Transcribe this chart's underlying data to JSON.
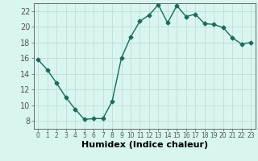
{
  "x": [
    0,
    1,
    2,
    3,
    4,
    5,
    6,
    7,
    8,
    9,
    10,
    11,
    12,
    13,
    14,
    15,
    16,
    17,
    18,
    19,
    20,
    21,
    22,
    23
  ],
  "y": [
    15.8,
    14.5,
    12.8,
    11.0,
    9.5,
    8.2,
    8.3,
    8.3,
    10.5,
    16.0,
    18.7,
    20.7,
    21.5,
    22.8,
    20.5,
    22.7,
    21.3,
    21.6,
    20.4,
    20.3,
    19.9,
    18.6,
    17.8,
    18.0
  ],
  "xlabel": "Humidex (Indice chaleur)",
  "xlim": [
    -0.5,
    23.5
  ],
  "ylim": [
    7,
    23
  ],
  "yticks": [
    8,
    10,
    12,
    14,
    16,
    18,
    20,
    22
  ],
  "xticks": [
    0,
    1,
    2,
    3,
    4,
    5,
    6,
    7,
    8,
    9,
    10,
    11,
    12,
    13,
    14,
    15,
    16,
    17,
    18,
    19,
    20,
    21,
    22,
    23
  ],
  "line_color": "#1a6b5a",
  "marker": "D",
  "marker_size": 2.5,
  "bg_color": "#d8f5f0",
  "grid_color": "#c0ddd8",
  "axis_color": "#555555",
  "xlabel_fontsize": 8,
  "tick_fontsize": 7,
  "xlabel_fontweight": "bold"
}
